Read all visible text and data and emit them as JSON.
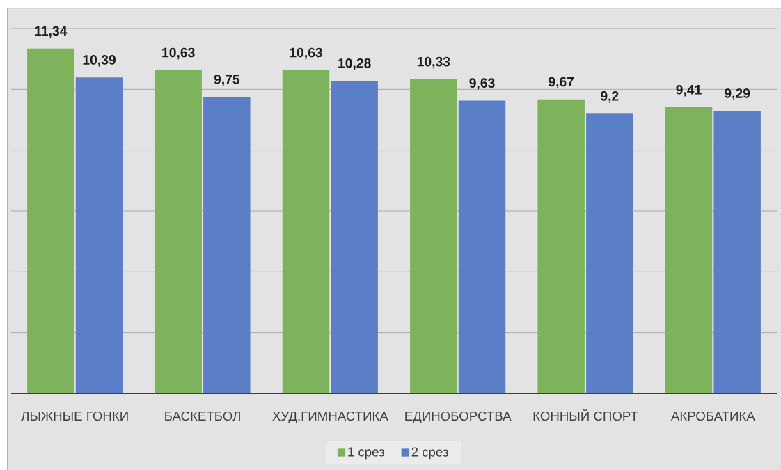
{
  "chart_data": {
    "type": "bar",
    "categories": [
      "ЛЫЖНЫЕ ГОНКИ",
      "БАСКЕТБОЛ",
      "ХУД.ГИМНАСТИКА",
      "ЕДИНОБОРСТВА",
      "КОННЫЙ СПОРТ",
      "АКРОБАТИКА"
    ],
    "series": [
      {
        "name": "1 срез",
        "color": "#7db35b",
        "values": [
          11.34,
          10.63,
          10.63,
          10.33,
          9.67,
          9.41
        ],
        "value_labels": [
          "11,34",
          "10,63",
          "10,63",
          "10,33",
          "9,67",
          "9,41"
        ]
      },
      {
        "name": "2 срез",
        "color": "#5b7fc6",
        "values": [
          10.39,
          9.75,
          10.28,
          9.63,
          9.2,
          9.29
        ],
        "value_labels": [
          "10,39",
          "9,75",
          "10,28",
          "9,63",
          "9,2",
          "9,29"
        ]
      }
    ],
    "ylim": [
      0,
      12
    ],
    "yticks": [
      {
        "value": 0,
        "label": null
      },
      {
        "value": 2,
        "label": null
      },
      {
        "value": 4,
        "label": null
      },
      {
        "value": 6,
        "label": null
      },
      {
        "value": 8,
        "label": null
      },
      {
        "value": 10,
        "label": null
      },
      {
        "value": 12,
        "label": null
      }
    ],
    "tick_labels": "x",
    "grid": "y",
    "legend": "bottom"
  }
}
